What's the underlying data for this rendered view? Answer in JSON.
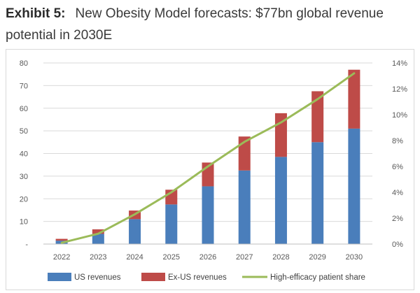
{
  "header": {
    "label": "Exhibit 5:",
    "title": "New Obesity Model forecasts: $77bn global revenue potential in 2030E"
  },
  "colors": {
    "us": "#4a7ebb",
    "exus": "#be4b48",
    "line": "#9bbb59",
    "grid": "#d9d9d9"
  },
  "chart_data": {
    "type": "bar",
    "stacked": true,
    "categories": [
      "2022",
      "2023",
      "2024",
      "2025",
      "2026",
      "2027",
      "2028",
      "2029",
      "2030"
    ],
    "series": [
      {
        "name": "US revenues",
        "axis": "left",
        "values": [
          1.5,
          4.5,
          11,
          17.5,
          25.5,
          32.5,
          38.5,
          45,
          51
        ]
      },
      {
        "name": "Ex-US revenues",
        "axis": "left",
        "values": [
          0.8,
          2,
          3.8,
          6.5,
          10.5,
          15,
          19.3,
          22.5,
          26
        ]
      },
      {
        "name": "High-efficacy patient share",
        "type": "line",
        "axis": "right",
        "values": [
          0.1,
          0.8,
          2.3,
          4.0,
          6.0,
          7.9,
          9.4,
          11.2,
          13.2
        ]
      }
    ],
    "y_left": {
      "ylim": [
        0,
        80
      ],
      "ticks": [
        "-",
        "10",
        "20",
        "30",
        "40",
        "50",
        "60",
        "70",
        "80"
      ]
    },
    "y_right": {
      "ylim": [
        0,
        14
      ],
      "ticks": [
        "0%",
        "2%",
        "4%",
        "6%",
        "8%",
        "10%",
        "12%",
        "14%"
      ]
    },
    "grid": true,
    "legend": "bottom"
  }
}
